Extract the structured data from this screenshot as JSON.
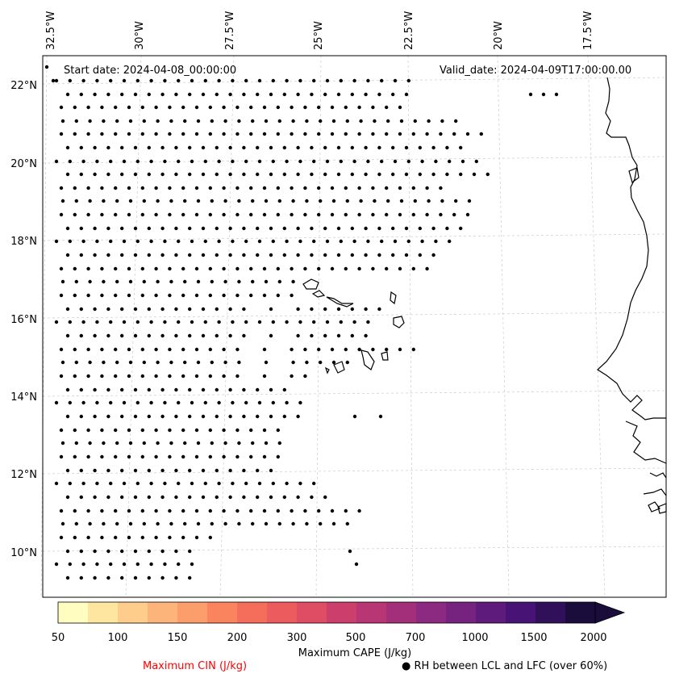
{
  "map": {
    "start_date": "Start date: 2024-04-08_00:00:00",
    "valid_date": "Valid_date: 2024-04-09T17:00:00.00",
    "lon_labels": [
      "32.5°W",
      "30°W",
      "27.5°W",
      "25°W",
      "22.5°W",
      "20°W",
      "17.5°W"
    ],
    "lat_labels": [
      "22°N",
      "20°N",
      "18°N",
      "16°N",
      "14°N",
      "12°N",
      "10°N"
    ],
    "stipple_marker": "dot"
  },
  "colorbar": {
    "title": "Maximum CAPE (J/kg)",
    "tick_labels": [
      "50",
      "100",
      "150",
      "200",
      "300",
      "500",
      "700",
      "1000",
      "1500",
      "2000"
    ],
    "colors": [
      "#fffdc0",
      "#fee5a0",
      "#fecd8b",
      "#fdb47a",
      "#fc9d6c",
      "#f9845e",
      "#f56e5c",
      "#ec5b5e",
      "#de4d64",
      "#cc3f6c",
      "#b83674",
      "#a32f7b",
      "#8c2980",
      "#76237f",
      "#5f1b7c",
      "#471476",
      "#2f1059",
      "#1a0d3c"
    ],
    "extend": "max"
  },
  "legend": {
    "cin": "Maximum CIN (J/kg)",
    "cin_color": "#ff0000",
    "rh": "● RH between LCL and LFC (over 60%)"
  }
}
